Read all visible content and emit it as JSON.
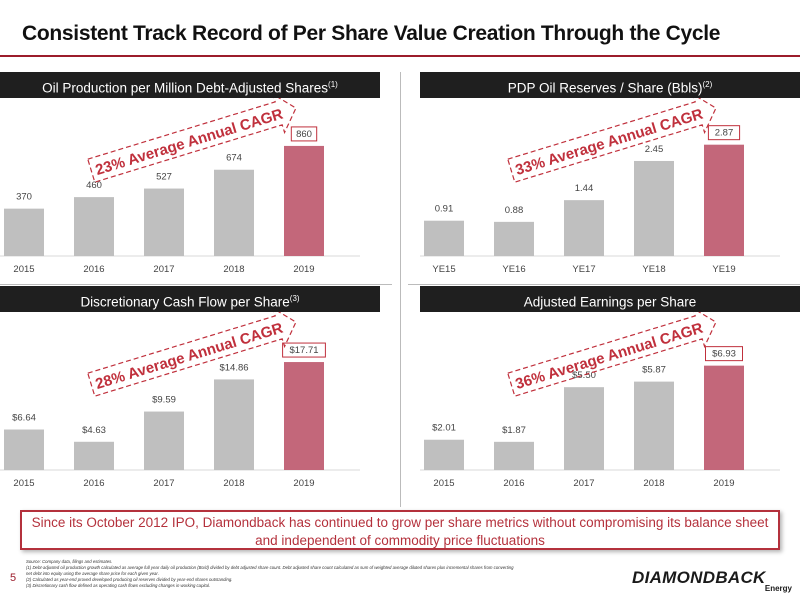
{
  "title": "Consistent Track Record of Per Share Value Creation Through the Cycle",
  "callout": "Since its October 2012 IPO, Diamondback has continued to grow per share metrics without compromising its balance sheet and independent of commodity price fluctuations",
  "footnotes": [
    "Source: Company data, filings and estimates.",
    "(1)      Debt-adjusted oil production growth calculated as average full year daily oil production (Bo/d) divided by debt adjusted share count. Debt adjusted share count calculated as sum of weighted average diluted shares plus incremental shares from converting",
    "          net debt into equity using the average share price for each given year.",
    "(2)      Calculated as year-end proved developed producing oil reserves divided by year-end shares outstanding.",
    "(3)      Discretionary cash flow defined as operating cash flows excluding changes in working capital."
  ],
  "page_number": "5",
  "logo": {
    "main": "DIAMONDBACK",
    "sub": "Energy"
  },
  "colors": {
    "bar_grey": "#bfbfbf",
    "bar_highlight": "#c3677a",
    "accent": "#c0303c",
    "header_bg": "#1f1f1f"
  },
  "chart_data": [
    {
      "type": "bar",
      "title": "Oil Production per Million Debt-Adjusted Shares",
      "title_sup": "(1)",
      "categories": [
        "2015",
        "2016",
        "2017",
        "2018",
        "2019"
      ],
      "values": [
        370,
        460,
        527,
        674,
        860
      ],
      "value_labels": [
        "370",
        "460",
        "527",
        "674",
        "860"
      ],
      "highlight_index": 4,
      "annotation": "23% Average Annual CAGR",
      "ylim": [
        0,
        1000
      ]
    },
    {
      "type": "bar",
      "title": "PDP Oil Reserves / Share (Bbls)",
      "title_sup": "(2)",
      "categories": [
        "YE15",
        "YE16",
        "YE17",
        "YE18",
        "YE19"
      ],
      "values": [
        0.91,
        0.88,
        1.44,
        2.45,
        2.87
      ],
      "value_labels": [
        "0.91",
        "0.88",
        "1.44",
        "2.45",
        "2.87"
      ],
      "highlight_index": 4,
      "annotation": "33% Average Annual CAGR",
      "ylim": [
        0,
        3.3
      ]
    },
    {
      "type": "bar",
      "title": "Discretionary Cash Flow per Share",
      "title_sup": "(3)",
      "categories": [
        "2015",
        "2016",
        "2017",
        "2018",
        "2019"
      ],
      "values": [
        6.64,
        4.63,
        9.59,
        14.86,
        17.71
      ],
      "value_labels": [
        "$6.64",
        "$4.63",
        "$9.59",
        "$14.86",
        "$17.71"
      ],
      "highlight_index": 4,
      "annotation": "28% Average Annual CAGR",
      "ylim": [
        0,
        21
      ]
    },
    {
      "type": "bar",
      "title": "Adjusted Earnings per Share",
      "title_sup": "",
      "categories": [
        "2015",
        "2016",
        "2017",
        "2018",
        "2019"
      ],
      "values": [
        2.01,
        1.87,
        5.5,
        5.87,
        6.93
      ],
      "value_labels": [
        "$2.01",
        "$1.87",
        "$5.50",
        "$5.87",
        "$6.93"
      ],
      "highlight_index": 4,
      "annotation": "36% Average Annual CAGR",
      "ylim": [
        0,
        8.5
      ]
    }
  ]
}
